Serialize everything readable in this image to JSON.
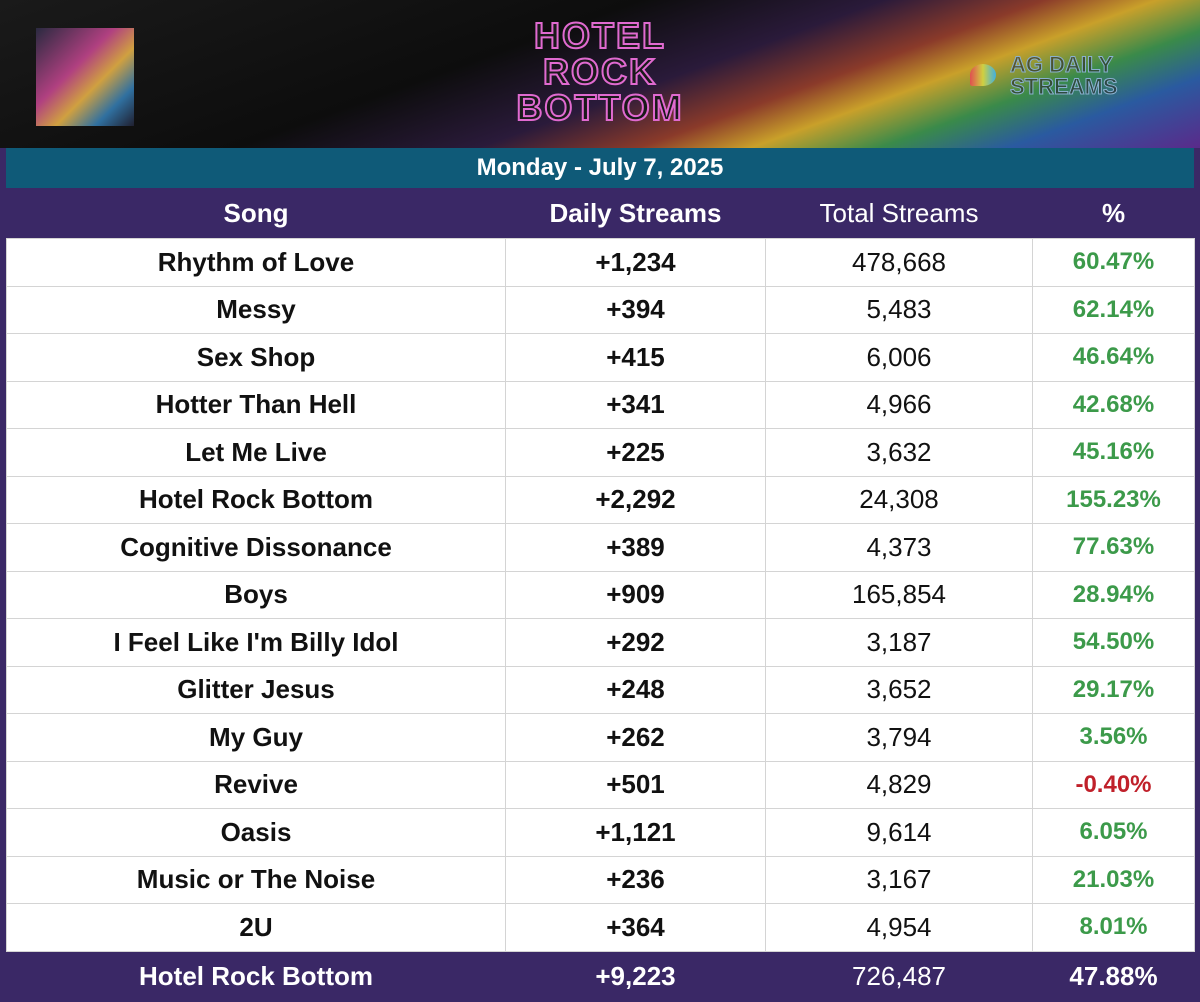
{
  "header": {
    "title": [
      "HOTEL",
      "ROCK",
      "BOTTOM"
    ],
    "watermark": [
      "AG DAILY",
      "STREAMS"
    ]
  },
  "date": "Monday - July 7, 2025",
  "table": {
    "columns": [
      "Song",
      "Daily Streams",
      "Total Streams",
      "%"
    ],
    "rows": [
      [
        "Rhythm of Love",
        "+1,234",
        "478,668",
        "60.47%"
      ],
      [
        "Messy",
        "+394",
        "5,483",
        "62.14%"
      ],
      [
        "Sex Shop",
        "+415",
        "6,006",
        "46.64%"
      ],
      [
        "Hotter Than Hell",
        "+341",
        "4,966",
        "42.68%"
      ],
      [
        "Let Me Live",
        "+225",
        "3,632",
        "45.16%"
      ],
      [
        "Hotel Rock Bottom",
        "+2,292",
        "24,308",
        "155.23%"
      ],
      [
        "Cognitive Dissonance",
        "+389",
        "4,373",
        "77.63%"
      ],
      [
        "Boys",
        "+909",
        "165,854",
        "28.94%"
      ],
      [
        "I Feel Like I'm Billy Idol",
        "+292",
        "3,187",
        "54.50%"
      ],
      [
        "Glitter Jesus",
        "+248",
        "3,652",
        "29.17%"
      ],
      [
        "My Guy",
        "+262",
        "3,794",
        "3.56%"
      ],
      [
        "Revive",
        "+501",
        "4,829",
        "-0.40%"
      ],
      [
        "Oasis",
        "+1,121",
        "9,614",
        "6.05%"
      ],
      [
        "Music or The Noise",
        "+236",
        "3,167",
        "21.03%"
      ],
      [
        "2U",
        "+364",
        "4,954",
        "8.01%"
      ]
    ],
    "total": [
      "Hotel Rock Bottom",
      "+9,223",
      "726,487",
      "47.88%"
    ]
  }
}
